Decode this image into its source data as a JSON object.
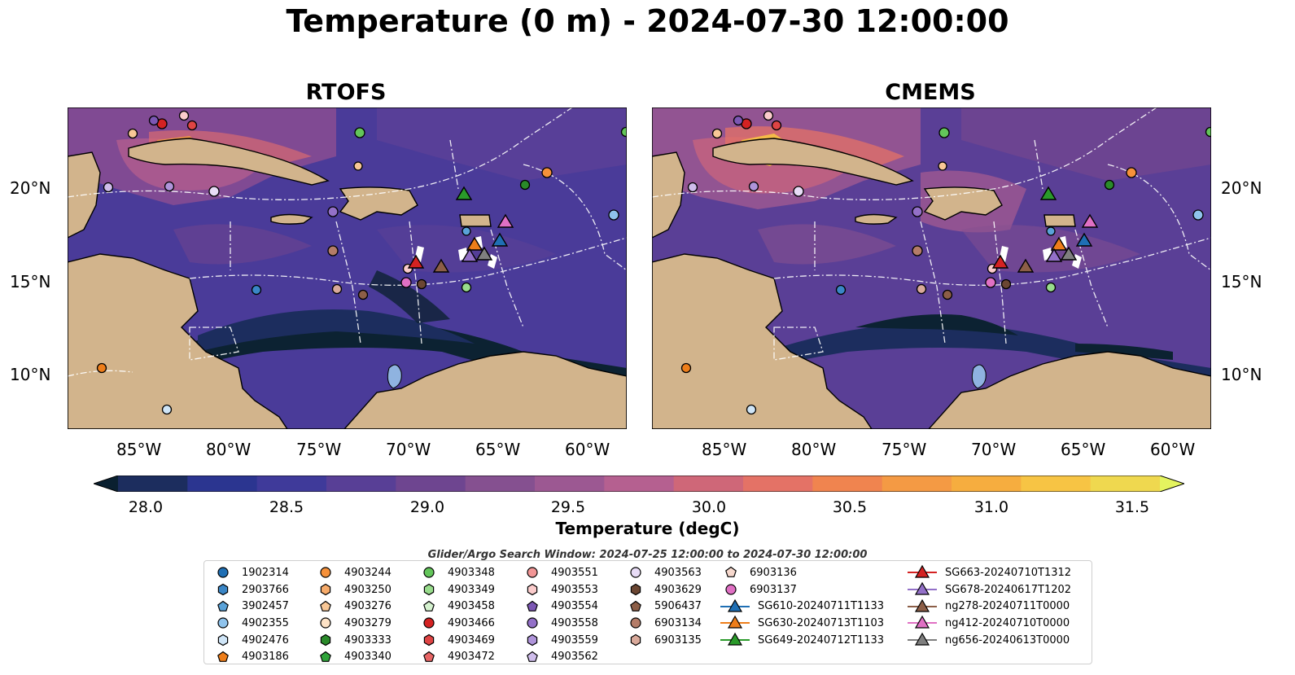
{
  "title": "Temperature (0 m) - 2024-07-30 12:00:00",
  "panels": [
    {
      "title": "RTOFS"
    },
    {
      "title": "CMEMS"
    }
  ],
  "axes": {
    "lat_labels": [
      "20°N",
      "15°N",
      "10°N"
    ],
    "lon_labels": [
      "85°W",
      "80°W",
      "75°W",
      "70°W",
      "65°W",
      "60°W"
    ]
  },
  "colorbar": {
    "label": "Temperature (degC)",
    "ticks": [
      "28.0",
      "28.5",
      "29.0",
      "29.5",
      "30.0",
      "30.5",
      "31.0",
      "31.5"
    ],
    "colors": [
      "#0a2030",
      "#1c2d5e",
      "#2b3590",
      "#3f3a9a",
      "#583f96",
      "#6e4590",
      "#855090",
      "#9c5892",
      "#b56090",
      "#cf6778",
      "#e47266",
      "#f0844f",
      "#f49a44",
      "#f6ad3f",
      "#f7c444",
      "#efd84f",
      "#e4f45f"
    ]
  },
  "search_window": "Glider/Argo Search Window: 2024-07-25 12:00:00 to 2024-07-30 12:00:00",
  "legend": {
    "columns": [
      [
        {
          "label": "1902314",
          "shape": "circle",
          "color": "#1f6fb4"
        },
        {
          "label": "2903766",
          "shape": "hexagon",
          "color": "#3a86c6"
        },
        {
          "label": "3902457",
          "shape": "pentagon",
          "color": "#5aa2d8"
        },
        {
          "label": "4902355",
          "shape": "circle",
          "color": "#8fc3ec"
        },
        {
          "label": "4902476",
          "shape": "hexagon",
          "color": "#cfe5f7"
        },
        {
          "label": "4903186",
          "shape": "pentagon",
          "color": "#ee7e1a"
        }
      ],
      [
        {
          "label": "4903244",
          "shape": "circle",
          "color": "#f6913a"
        },
        {
          "label": "4903250",
          "shape": "hexagon",
          "color": "#f7ab6a"
        },
        {
          "label": "4903276",
          "shape": "pentagon",
          "color": "#f8c796"
        },
        {
          "label": "4903279",
          "shape": "circle",
          "color": "#fde2c6"
        },
        {
          "label": "4903333",
          "shape": "hexagon",
          "color": "#2a8a2a"
        },
        {
          "label": "4903340",
          "shape": "pentagon",
          "color": "#2fa33a"
        }
      ],
      [
        {
          "label": "4903348",
          "shape": "circle",
          "color": "#63c55a"
        },
        {
          "label": "4903349",
          "shape": "hexagon",
          "color": "#98dc8c"
        },
        {
          "label": "4903458",
          "shape": "pentagon",
          "color": "#d5f2cf"
        },
        {
          "label": "4903466",
          "shape": "circle",
          "color": "#d42222"
        },
        {
          "label": "4903469",
          "shape": "hexagon",
          "color": "#df4444"
        },
        {
          "label": "4903472",
          "shape": "pentagon",
          "color": "#e86565"
        }
      ],
      [
        {
          "label": "4903551",
          "shape": "circle",
          "color": "#f29696"
        },
        {
          "label": "4903553",
          "shape": "hexagon",
          "color": "#fbcccc"
        },
        {
          "label": "4903554",
          "shape": "pentagon",
          "color": "#7c57b4"
        },
        {
          "label": "4903558",
          "shape": "circle",
          "color": "#9370c8"
        },
        {
          "label": "4903559",
          "shape": "hexagon",
          "color": "#af94da"
        },
        {
          "label": "4903562",
          "shape": "pentagon",
          "color": "#cfbdeb"
        }
      ],
      [
        {
          "label": "4903563",
          "shape": "circle",
          "color": "#e8dcf6"
        },
        {
          "label": "4903629",
          "shape": "hexagon",
          "color": "#6b4632"
        },
        {
          "label": "5906437",
          "shape": "pentagon",
          "color": "#8c5e47"
        },
        {
          "label": "6903134",
          "shape": "circle",
          "color": "#b47c68"
        },
        {
          "label": "6903135",
          "shape": "hexagon",
          "color": "#d9a99a"
        }
      ],
      [
        {
          "label": "6903136",
          "shape": "pentagon",
          "color": "#f6d8cd"
        },
        {
          "label": "6903137",
          "shape": "circle",
          "color": "#e070c4"
        },
        {
          "label": "SG610-20240711T1133",
          "shape": "triangle-line",
          "color": "#1f6fb4"
        },
        {
          "label": "SG630-20240713T1103",
          "shape": "triangle-line",
          "color": "#ee7e1a"
        },
        {
          "label": "SG649-20240712T1133",
          "shape": "triangle-line",
          "color": "#2a9a2a"
        }
      ],
      [
        {
          "label": "SG663-20240710T1312",
          "shape": "triangle-line",
          "color": "#d42222"
        },
        {
          "label": "SG678-20240617T1202",
          "shape": "triangle-line",
          "color": "#9370c8"
        },
        {
          "label": "ng278-20240711T0000",
          "shape": "triangle-line",
          "color": "#8c5e47"
        },
        {
          "label": "ng412-20240710T0000",
          "shape": "triangle-line",
          "color": "#e070c4"
        },
        {
          "label": "ng656-20240613T0000",
          "shape": "triangle-line",
          "color": "#7f7f7f"
        }
      ]
    ]
  }
}
